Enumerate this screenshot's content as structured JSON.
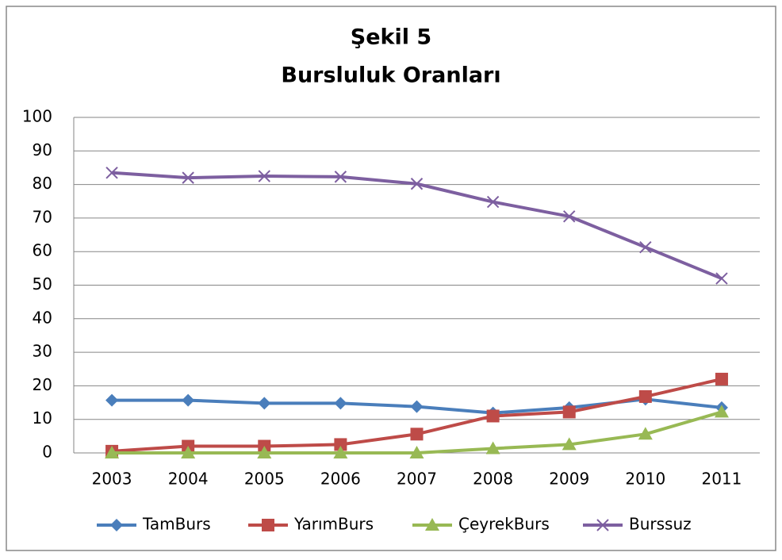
{
  "chart_data": {
    "type": "line",
    "title": "Şekil 5",
    "subtitle": "Bursluluk Oranları",
    "categories": [
      "2003",
      "2004",
      "2005",
      "2006",
      "2007",
      "2008",
      "2009",
      "2010",
      "2011"
    ],
    "series": [
      {
        "name": "TamBurs",
        "color": "#4a7ebb",
        "marker": "diamond",
        "values": [
          15.7,
          15.7,
          14.8,
          14.8,
          13.8,
          11.9,
          13.5,
          16,
          13.5
        ]
      },
      {
        "name": "YarımBurs",
        "color": "#be4b48",
        "marker": "square",
        "values": [
          0.5,
          2,
          2,
          2.5,
          5.6,
          11,
          12.2,
          16.8,
          22
        ]
      },
      {
        "name": "ÇeyrekBurs",
        "color": "#98b954",
        "marker": "triangle",
        "values": [
          0,
          0,
          0,
          0,
          0,
          1.3,
          2.5,
          5.6,
          12.2
        ]
      },
      {
        "name": "Burssuz",
        "color": "#7d5fa0",
        "marker": "x",
        "values": [
          83.5,
          82,
          82.5,
          82.3,
          80.2,
          74.8,
          70.5,
          61.3,
          52
        ]
      }
    ],
    "ylim": [
      0,
      100
    ],
    "yticks": [
      0,
      10,
      20,
      30,
      40,
      50,
      60,
      70,
      80,
      90,
      100
    ],
    "grid": true,
    "legend": "bottom"
  }
}
